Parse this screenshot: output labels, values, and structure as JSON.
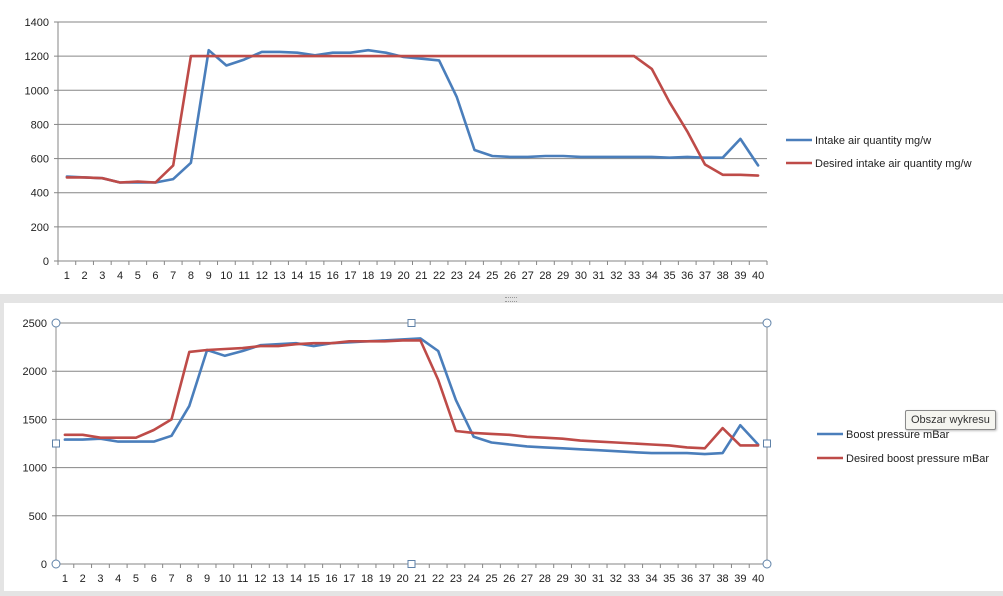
{
  "chart_data": [
    {
      "type": "line",
      "title": "",
      "xlabel": "",
      "ylabel": "",
      "ylim": [
        0,
        1400
      ],
      "yticks": [
        0,
        200,
        400,
        600,
        800,
        1000,
        1200,
        1400
      ],
      "categories": [
        "1",
        "2",
        "3",
        "4",
        "5",
        "6",
        "7",
        "8",
        "9",
        "10",
        "11",
        "12",
        "13",
        "14",
        "15",
        "16",
        "17",
        "18",
        "19",
        "20",
        "21",
        "22",
        "23",
        "24",
        "25",
        "26",
        "27",
        "28",
        "29",
        "30",
        "31",
        "32",
        "33",
        "34",
        "35",
        "36",
        "37",
        "38",
        "39",
        "40"
      ],
      "grid": true,
      "legend_position": "right",
      "series": [
        {
          "name": "Intake air quantity mg/w",
          "color": "#4a7ebb",
          "values": [
            495,
            490,
            485,
            460,
            460,
            460,
            480,
            575,
            1235,
            1145,
            1180,
            1225,
            1225,
            1220,
            1205,
            1220,
            1220,
            1235,
            1220,
            1195,
            1185,
            1175,
            960,
            650,
            615,
            610,
            610,
            615,
            615,
            610,
            610,
            610,
            610,
            610,
            605,
            610,
            605,
            605,
            715,
            560
          ]
        },
        {
          "name": "Desired intake air quantity mg/w",
          "color": "#be4b48",
          "values": [
            490,
            490,
            485,
            460,
            465,
            460,
            560,
            1200,
            1200,
            1200,
            1200,
            1200,
            1200,
            1200,
            1200,
            1200,
            1200,
            1200,
            1200,
            1200,
            1200,
            1200,
            1200,
            1200,
            1200,
            1200,
            1200,
            1200,
            1200,
            1200,
            1200,
            1200,
            1200,
            1125,
            930,
            760,
            565,
            505,
            505,
            500
          ]
        }
      ]
    },
    {
      "type": "line",
      "title": "",
      "xlabel": "",
      "ylabel": "",
      "ylim": [
        0,
        2500
      ],
      "yticks": [
        0,
        500,
        1000,
        1500,
        2000,
        2500
      ],
      "categories": [
        "1",
        "2",
        "3",
        "4",
        "5",
        "6",
        "7",
        "8",
        "9",
        "10",
        "11",
        "12",
        "13",
        "14",
        "15",
        "16",
        "17",
        "18",
        "19",
        "20",
        "21",
        "22",
        "23",
        "24",
        "25",
        "26",
        "27",
        "28",
        "29",
        "30",
        "31",
        "32",
        "33",
        "34",
        "35",
        "36",
        "37",
        "38",
        "39",
        "40"
      ],
      "grid": true,
      "legend_position": "right",
      "selected": true,
      "series": [
        {
          "name": "Boost pressure mBar",
          "color": "#4a7ebb",
          "values": [
            1290,
            1290,
            1300,
            1270,
            1270,
            1270,
            1330,
            1640,
            2220,
            2160,
            2210,
            2270,
            2280,
            2290,
            2260,
            2290,
            2300,
            2310,
            2320,
            2330,
            2340,
            2210,
            1700,
            1320,
            1260,
            1240,
            1220,
            1210,
            1200,
            1190,
            1180,
            1170,
            1160,
            1150,
            1150,
            1150,
            1140,
            1150,
            1440,
            1240
          ]
        },
        {
          "name": "Desired boost pressure mBar",
          "color": "#be4b48",
          "values": [
            1340,
            1340,
            1310,
            1310,
            1310,
            1390,
            1500,
            2200,
            2220,
            2230,
            2240,
            2260,
            2260,
            2280,
            2290,
            2290,
            2310,
            2310,
            2310,
            2320,
            2320,
            1910,
            1380,
            1360,
            1350,
            1340,
            1320,
            1310,
            1300,
            1280,
            1270,
            1260,
            1250,
            1240,
            1230,
            1210,
            1200,
            1410,
            1230,
            1230
          ]
        }
      ]
    }
  ],
  "tooltip": "Obszar wykresu"
}
